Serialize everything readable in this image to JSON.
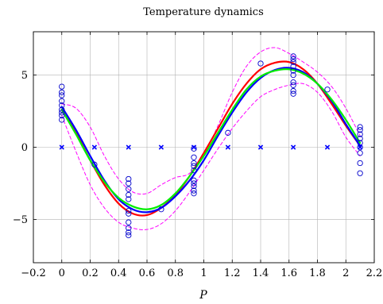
{
  "chart_data": {
    "type": "line",
    "title": "Temperature dynamics",
    "xlabel": "P",
    "ylabel": "",
    "xlim": [
      -0.2,
      2.2
    ],
    "ylim": [
      -8,
      8
    ],
    "grid": true,
    "x_ticks": [
      -0.2,
      0,
      0.2,
      0.4,
      0.6,
      0.8,
      1,
      1.2,
      1.4,
      1.6,
      1.8,
      2,
      2.2
    ],
    "x_tick_labels": [
      "−0.2",
      "0",
      "0.2",
      "0.4",
      "0.6",
      "0.8",
      "1",
      "1.2",
      "1.4",
      "1.6",
      "1.8",
      "2",
      "2.2"
    ],
    "y_ticks": [
      -5,
      0,
      5
    ],
    "y_tick_labels": [
      "−5",
      "0",
      "5"
    ],
    "colors": {
      "red": "#ff0000",
      "blue": "#0000ff",
      "green": "#00ee00",
      "magenta": "#ff00ff",
      "observations": "#0000cc",
      "inducing": "#0000ff"
    },
    "series": [
      {
        "style": "line",
        "color": "red",
        "width": 2.2,
        "x": [
          0,
          0.1,
          0.2,
          0.3,
          0.4,
          0.5,
          0.6,
          0.7,
          0.8,
          0.9,
          1.0,
          1.1,
          1.2,
          1.3,
          1.4,
          1.5,
          1.6,
          1.7,
          1.8,
          1.9,
          2.0,
          2.1
        ],
        "y": [
          2.6,
          1.0,
          -0.9,
          -2.6,
          -3.9,
          -4.6,
          -4.7,
          -4.2,
          -3.3,
          -2.0,
          -0.4,
          1.3,
          3.0,
          4.4,
          5.4,
          5.85,
          5.9,
          5.4,
          4.4,
          3.0,
          1.5,
          0.1
        ]
      },
      {
        "style": "line",
        "color": "blue",
        "width": 2.2,
        "x": [
          0,
          0.1,
          0.2,
          0.3,
          0.4,
          0.5,
          0.6,
          0.7,
          0.8,
          0.9,
          1.0,
          1.1,
          1.2,
          1.3,
          1.4,
          1.5,
          1.6,
          1.7,
          1.8,
          1.9,
          2.0,
          2.1
        ],
        "y": [
          2.8,
          1.2,
          -0.6,
          -2.3,
          -3.6,
          -4.3,
          -4.5,
          -4.2,
          -3.4,
          -2.3,
          -0.9,
          0.8,
          2.4,
          3.8,
          4.8,
          5.35,
          5.5,
          5.2,
          4.4,
          3.2,
          1.6,
          0.1
        ]
      },
      {
        "style": "line",
        "color": "green",
        "width": 2.2,
        "x": [
          0,
          0.1,
          0.2,
          0.3,
          0.4,
          0.5,
          0.6,
          0.7,
          0.8,
          0.9,
          1.0,
          1.1,
          1.2,
          1.3,
          1.4,
          1.5,
          1.6,
          1.7,
          1.8,
          1.9,
          2.0,
          2.1
        ],
        "y": [
          2.6,
          0.9,
          -0.9,
          -2.4,
          -3.5,
          -4.1,
          -4.3,
          -4.0,
          -3.2,
          -2.0,
          -0.6,
          1.0,
          2.6,
          4.0,
          4.9,
          5.3,
          5.4,
          5.1,
          4.4,
          3.3,
          1.9,
          0.3
        ]
      },
      {
        "style": "dashed",
        "color": "magenta",
        "width": 1.0,
        "x": [
          0,
          0.1,
          0.2,
          0.3,
          0.4,
          0.5,
          0.6,
          0.7,
          0.8,
          0.9,
          1.0,
          1.1,
          1.2,
          1.3,
          1.4,
          1.5,
          1.6,
          1.7,
          1.8,
          1.9,
          2.0,
          2.1
        ],
        "y": [
          3.0,
          2.7,
          1.4,
          -0.6,
          -2.2,
          -3.1,
          -3.2,
          -2.6,
          -2.1,
          -1.8,
          -0.5,
          1.5,
          3.8,
          5.6,
          6.6,
          6.9,
          6.5,
          5.9,
          5.2,
          4.2,
          2.7,
          0.8
        ]
      },
      {
        "style": "dashed",
        "color": "magenta",
        "width": 1.0,
        "x": [
          0,
          0.1,
          0.2,
          0.3,
          0.4,
          0.5,
          0.6,
          0.7,
          0.8,
          0.9,
          1.0,
          1.1,
          1.2,
          1.3,
          1.4,
          1.5,
          1.6,
          1.7,
          1.8,
          1.9,
          2.0,
          2.1
        ],
        "y": [
          2.2,
          -0.3,
          -2.6,
          -4.2,
          -5.2,
          -5.6,
          -5.7,
          -5.3,
          -4.4,
          -3.1,
          -1.6,
          -0.1,
          1.3,
          2.5,
          3.5,
          4.0,
          4.3,
          4.4,
          3.8,
          2.5,
          0.7,
          -0.6
        ]
      }
    ],
    "observations": {
      "marker": "circle",
      "color": "observations",
      "points": [
        [
          0,
          4.2
        ],
        [
          0,
          3.8
        ],
        [
          0,
          3.6
        ],
        [
          0,
          3.2
        ],
        [
          0,
          2.9
        ],
        [
          0,
          2.6
        ],
        [
          0,
          2.4
        ],
        [
          0,
          2.2
        ],
        [
          0,
          1.9
        ],
        [
          0.23,
          -1.2
        ],
        [
          0.47,
          -2.2
        ],
        [
          0.47,
          -2.5
        ],
        [
          0.47,
          -2.9
        ],
        [
          0.47,
          -3.3
        ],
        [
          0.47,
          -3.6
        ],
        [
          0.47,
          -4.4
        ],
        [
          0.47,
          -4.6
        ],
        [
          0.47,
          -5.2
        ],
        [
          0.47,
          -5.6
        ],
        [
          0.47,
          -5.9
        ],
        [
          0.47,
          -6.1
        ],
        [
          0.7,
          -4.3
        ],
        [
          0.93,
          -0.1
        ],
        [
          0.93,
          -0.7
        ],
        [
          0.93,
          -1.1
        ],
        [
          0.93,
          -1.3
        ],
        [
          0.93,
          -1.6
        ],
        [
          0.93,
          -2.3
        ],
        [
          0.93,
          -2.5
        ],
        [
          0.93,
          -2.7
        ],
        [
          0.93,
          -3.0
        ],
        [
          0.93,
          -3.2
        ],
        [
          1.17,
          1.0
        ],
        [
          1.4,
          5.8
        ],
        [
          1.63,
          6.3
        ],
        [
          1.63,
          6.1
        ],
        [
          1.63,
          5.9
        ],
        [
          1.63,
          5.6
        ],
        [
          1.63,
          5.3
        ],
        [
          1.63,
          5.0
        ],
        [
          1.63,
          4.5
        ],
        [
          1.63,
          4.3
        ],
        [
          1.63,
          3.9
        ],
        [
          1.63,
          3.7
        ],
        [
          1.87,
          4.0
        ],
        [
          2.1,
          1.4
        ],
        [
          2.1,
          1.2
        ],
        [
          2.1,
          0.9
        ],
        [
          2.1,
          0.6
        ],
        [
          2.1,
          0.3
        ],
        [
          2.1,
          0.0
        ],
        [
          2.1,
          -0.4
        ],
        [
          2.1,
          -1.1
        ],
        [
          2.1,
          -1.8
        ]
      ]
    },
    "inducing_points": {
      "marker": "x",
      "color": "inducing",
      "x": [
        0,
        0.23,
        0.47,
        0.7,
        0.93,
        1.17,
        1.4,
        1.63,
        1.87,
        2.1
      ],
      "y": [
        0,
        0,
        0,
        0,
        0,
        0,
        0,
        0,
        0,
        0
      ]
    }
  }
}
